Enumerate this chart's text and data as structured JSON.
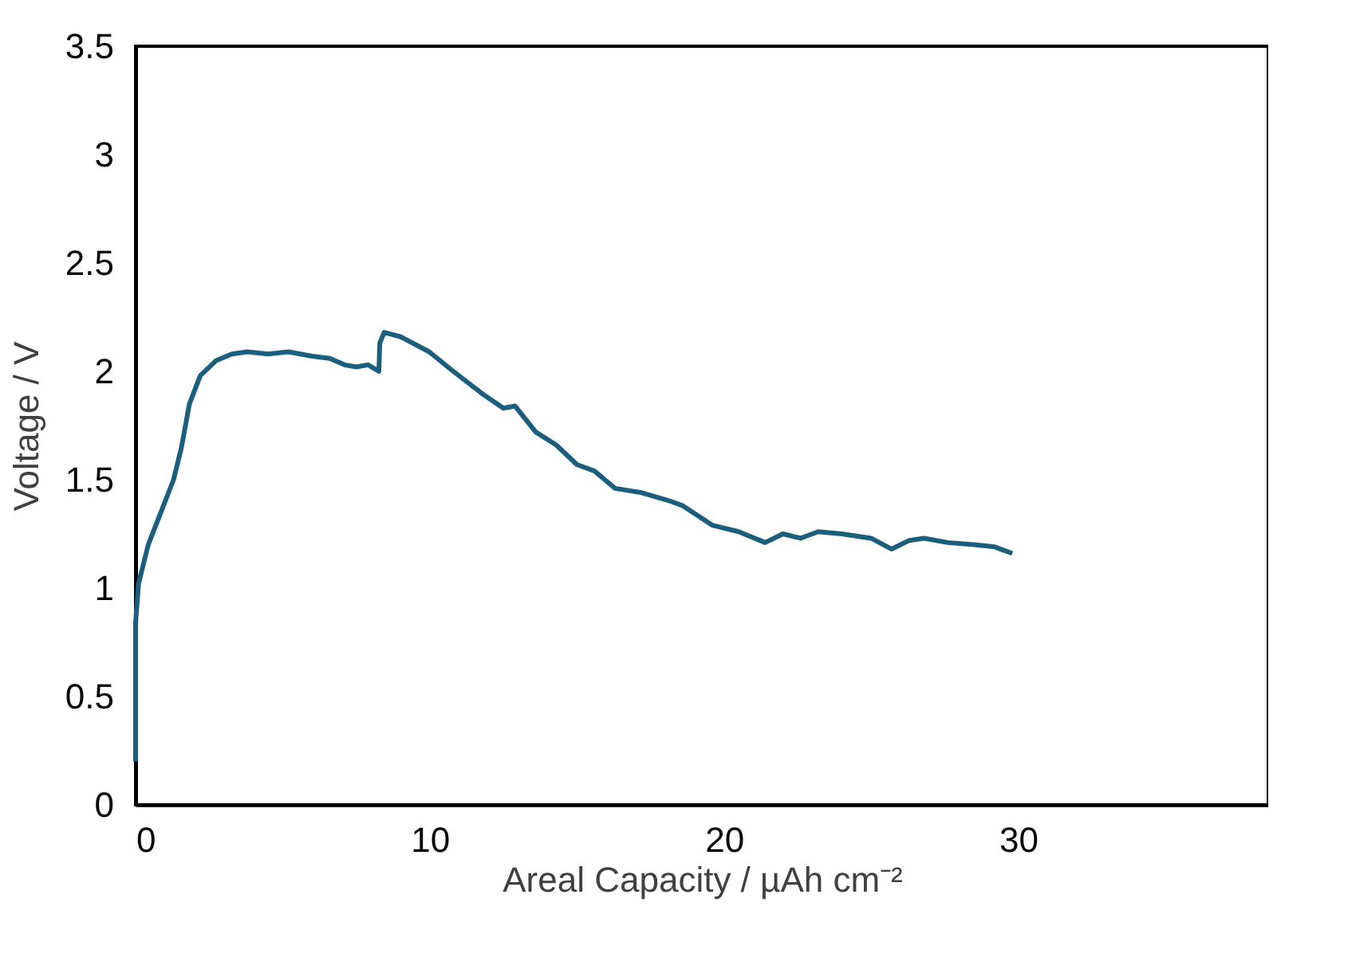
{
  "chart_data": {
    "type": "line",
    "xlabel": "Areal Capacity / µAh cm⁻²",
    "ylabel": "Voltage / V",
    "xlim": [
      0,
      38.5
    ],
    "xticks": [
      0,
      10,
      20,
      30
    ],
    "ylim": [
      0,
      3.5
    ],
    "yticks": [
      0,
      0.5,
      1,
      1.5,
      2,
      2.5,
      3,
      3.5
    ],
    "grid": false,
    "marker": "none",
    "line_style": "solid",
    "series": [
      {
        "color": "#1b5e7e",
        "x": [
          0,
          0,
          0.1,
          0.43,
          0.86,
          1.29,
          1.56,
          1.83,
          2.2,
          2.74,
          3.27,
          3.8,
          4.5,
          5.2,
          6.0,
          6.6,
          7.1,
          7.5,
          7.9,
          8.27,
          8.3,
          8.45,
          9.0,
          9.98,
          10.8,
          11.75,
          12.5,
          12.9,
          13.6,
          14.3,
          15.0,
          15.6,
          16.3,
          17.2,
          18.2,
          18.6,
          19.6,
          20.5,
          21.4,
          22.0,
          22.6,
          23.2,
          24.0,
          25.0,
          25.7,
          26.3,
          26.8,
          27.6,
          28.5,
          29.2,
          29.8
        ],
        "values": [
          0.2,
          0.84,
          1.02,
          1.2,
          1.35,
          1.5,
          1.65,
          1.85,
          1.98,
          2.05,
          2.08,
          2.09,
          2.08,
          2.09,
          2.07,
          2.06,
          2.03,
          2.02,
          2.03,
          2.0,
          2.13,
          2.18,
          2.16,
          2.09,
          2.0,
          1.9,
          1.83,
          1.84,
          1.72,
          1.66,
          1.57,
          1.54,
          1.46,
          1.44,
          1.4,
          1.38,
          1.29,
          1.26,
          1.21,
          1.25,
          1.23,
          1.26,
          1.25,
          1.23,
          1.18,
          1.22,
          1.23,
          1.21,
          1.2,
          1.19,
          1.16
        ]
      }
    ]
  }
}
